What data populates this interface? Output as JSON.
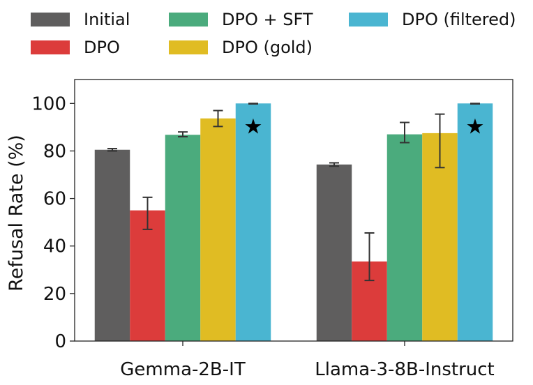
{
  "chart_data": {
    "type": "bar",
    "title": "",
    "xlabel": "",
    "ylabel": "Refusal Rate (%)",
    "ylim": [
      0,
      110
    ],
    "yticks": [
      0,
      20,
      40,
      60,
      80,
      100
    ],
    "grid": false,
    "legend_position": "top",
    "categories": [
      "Gemma-2B-IT",
      "Llama-3-8B-Instruct"
    ],
    "series": [
      {
        "name": "Initial",
        "color": "#5f5e5e",
        "values": [
          80.5,
          74.3
        ],
        "err_low": [
          80.0,
          73.6
        ],
        "err_high": [
          81.0,
          75.0
        ]
      },
      {
        "name": "DPO",
        "color": "#dc3c3b",
        "values": [
          55,
          33.5
        ],
        "err_low": [
          47,
          25.5
        ],
        "err_high": [
          60.5,
          45.5
        ]
      },
      {
        "name": "DPO + SFT",
        "color": "#4bab7d",
        "values": [
          86.8,
          87
        ],
        "err_low": [
          86,
          83.5
        ],
        "err_high": [
          88,
          92
        ]
      },
      {
        "name": "DPO (gold)",
        "color": "#e0bc23",
        "values": [
          93.7,
          87.5
        ],
        "err_low": [
          90.3,
          73
        ],
        "err_high": [
          97,
          95.5
        ]
      },
      {
        "name": "DPO (filtered)",
        "color": "#4ab5d1",
        "values": [
          100,
          100
        ],
        "err_low": [
          99.8,
          99.8
        ],
        "err_high": [
          100,
          100
        ]
      }
    ],
    "markers": [
      {
        "category_index": 0,
        "series_index": 4,
        "symbol": "★",
        "value": 90.5
      },
      {
        "category_index": 1,
        "series_index": 4,
        "symbol": "★",
        "value": 90.5
      }
    ]
  }
}
